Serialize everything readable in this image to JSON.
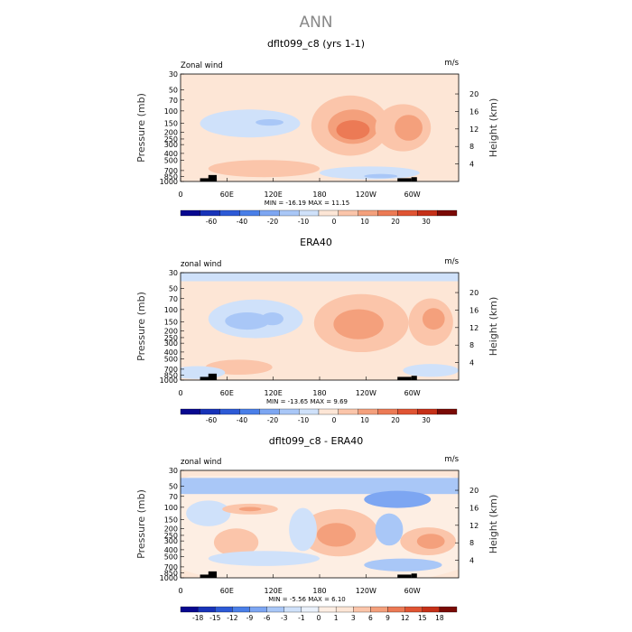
{
  "main_title": "ANN",
  "colors": {
    "frame": "#000000",
    "topography": "#000000"
  },
  "chart_data": [
    {
      "type": "contour",
      "title": "dflt099_c8 (yrs 1-1)",
      "field_label": "Zonal wind",
      "units": "m/s",
      "ylabel": "Pressure (mb)",
      "ylabel_right": "Height (km)",
      "x_ticks": [
        "0",
        "60E",
        "120E",
        "180",
        "120W",
        "60W"
      ],
      "y_ticks": [
        "30",
        "50",
        "70",
        "100",
        "150",
        "200",
        "250",
        "300",
        "400",
        "500",
        "700",
        "850",
        "1000"
      ],
      "height_ticks": [
        "4",
        "8",
        "12",
        "16",
        "20"
      ],
      "stats_text": "MIN = -16.19   MAX =  11.15",
      "min": -16.19,
      "max": 11.15,
      "colorbar_labels": [
        "-60",
        "-40",
        "-20",
        "-10",
        "0",
        "10",
        "20",
        "30"
      ],
      "colorbar_colors": [
        "#08088f",
        "#1833b8",
        "#2d5ad6",
        "#4a7fe8",
        "#7da6f2",
        "#a9c7f7",
        "#cfe1fa",
        "#fde6d6",
        "#fbc5aa",
        "#f4a07c",
        "#ec7a55",
        "#e05433",
        "#c53018",
        "#7a0a05"
      ]
    },
    {
      "type": "contour",
      "title": "ERA40",
      "field_label": "zonal wind",
      "units": "m/s",
      "ylabel": "Pressure (mb)",
      "ylabel_right": "Height (km)",
      "x_ticks": [
        "0",
        "60E",
        "120E",
        "180",
        "120W",
        "60W"
      ],
      "y_ticks": [
        "30",
        "50",
        "70",
        "100",
        "150",
        "200",
        "250",
        "300",
        "400",
        "500",
        "700",
        "850",
        "1000"
      ],
      "height_ticks": [
        "4",
        "8",
        "12",
        "16",
        "20"
      ],
      "stats_text": "MIN = -13.65   MAX =   9.69",
      "min": -13.65,
      "max": 9.69,
      "colorbar_labels": [
        "-60",
        "-40",
        "-20",
        "-10",
        "0",
        "10",
        "20",
        "30"
      ],
      "colorbar_colors": [
        "#08088f",
        "#1833b8",
        "#2d5ad6",
        "#4a7fe8",
        "#7da6f2",
        "#a9c7f7",
        "#cfe1fa",
        "#fde6d6",
        "#fbc5aa",
        "#f4a07c",
        "#ec7a55",
        "#e05433",
        "#c53018",
        "#7a0a05"
      ]
    },
    {
      "type": "contour",
      "title": "dflt099_c8 - ERA40",
      "field_label": "zonal wind",
      "units": "m/s",
      "ylabel": "Pressure (mb)",
      "ylabel_right": "Height (km)",
      "x_ticks": [
        "0",
        "60E",
        "120E",
        "180",
        "120W",
        "60W"
      ],
      "y_ticks": [
        "30",
        "50",
        "70",
        "100",
        "150",
        "200",
        "250",
        "300",
        "400",
        "500",
        "700",
        "850",
        "1000"
      ],
      "height_ticks": [
        "4",
        "8",
        "12",
        "16",
        "20"
      ],
      "stats_text": "MIN =  -5.56   MAX =   6.10",
      "min": -5.56,
      "max": 6.1,
      "colorbar_labels": [
        "-18",
        "-15",
        "-12",
        "-9",
        "-6",
        "-3",
        "-1",
        "0",
        "1",
        "3",
        "6",
        "9",
        "12",
        "15",
        "18"
      ],
      "colorbar_colors": [
        "#08088f",
        "#1833b8",
        "#2d5ad6",
        "#4a7fe8",
        "#7da6f2",
        "#a9c7f7",
        "#cfe1fa",
        "#eaf1fb",
        "#fdeee3",
        "#fde6d6",
        "#fbc5aa",
        "#f4a07c",
        "#ec7a55",
        "#e05433",
        "#c53018",
        "#7a0a05"
      ]
    }
  ]
}
